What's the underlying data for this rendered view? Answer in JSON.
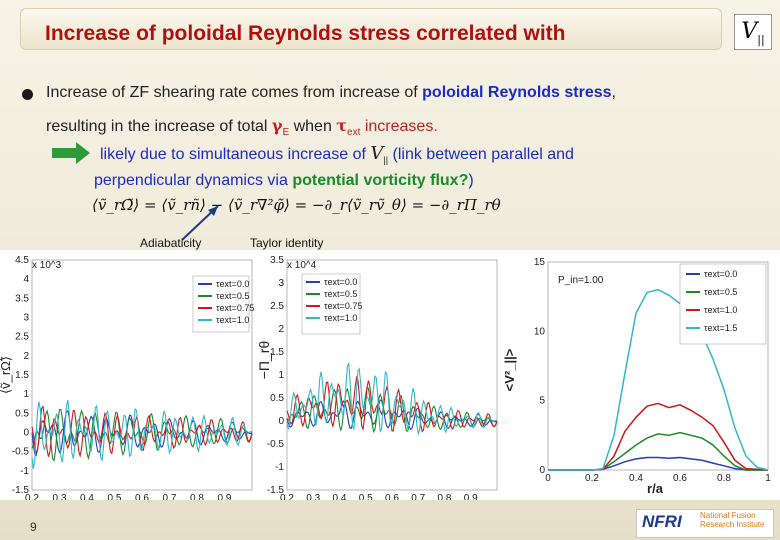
{
  "title": {
    "text": "Increase of poloidal Reynolds stress correlated with",
    "math": "V",
    "math_sub": "||"
  },
  "bullet": {
    "l1a": "Increase of ZF shearing rate comes from increase of ",
    "l1b": "poloidal Reynolds stress",
    "l1c": ",",
    "l2a": "resulting in the increase of total ",
    "l2b": "γ",
    "l2b_sub": "E",
    "l2c": " when ",
    "l2d": "τ",
    "l2d_sub": "ext",
    "l2e": " increases."
  },
  "line3": {
    "a": "likely due to simultaneous increase of ",
    "math": "V",
    "math_sub": "||",
    "b": " (link between parallel and"
  },
  "line4": {
    "a": "perpendicular dynamics via ",
    "b": "potential vorticity flux?",
    "c": ")"
  },
  "equation": "⟨ṽ_rΩ̃⟩ = ⟨ṽ_rñ⟩ − ⟨ṽ_r∇²φ̃⟩ = −∂_r⟨ṽ_rṽ_θ⟩ = −∂_rΠ_rθ",
  "labels": {
    "adiabaticity": "Adiabaticity",
    "taylor": "Taylor identity"
  },
  "page_number": "9",
  "logo": {
    "mark": "NFRI",
    "line1": "National Fusion",
    "line2": "Research Institute"
  },
  "chart_data": [
    {
      "type": "line",
      "ylabel": "⟨ṽ_rΩ̃⟩",
      "multiplier": "x 10^3",
      "xlim": [
        0.2,
        1.0
      ],
      "ylim": [
        -1.5,
        4.5
      ],
      "xticks": [
        "0.2",
        "0.3",
        "0.4",
        "0.5",
        "0.6",
        "0.7",
        "0.8",
        "0.9"
      ],
      "yticks": [
        "-1.5",
        "-1",
        "-0.5",
        "0",
        "0.5",
        "1",
        "1.5",
        "2",
        "2.5",
        "3",
        "3.5",
        "4",
        "4.5"
      ],
      "legend": [
        "τext=0.0",
        "τext=0.5",
        "τext=0.75",
        "τext=1.0"
      ],
      "colors": [
        "#1f3fbf",
        "#1a8a2a",
        "#d01818",
        "#30b8c8"
      ]
    },
    {
      "type": "line",
      "ylabel": "−Π_rθ",
      "multiplier": "x 10^4",
      "xlim": [
        0.2,
        1.0
      ],
      "ylim": [
        -1.5,
        3.5
      ],
      "xticks": [
        "0.2",
        "0.3",
        "0.4",
        "0.5",
        "0.6",
        "0.7",
        "0.8",
        "0.9"
      ],
      "yticks": [
        "-1.5",
        "-1",
        "-0.5",
        "0",
        "0.5",
        "1",
        "1.5",
        "2",
        "2.5",
        "3",
        "3.5"
      ],
      "legend": [
        "τext=0.0",
        "τext=0.5",
        "τext=0.75",
        "τext=1.0"
      ],
      "colors": [
        "#1f3fbf",
        "#1a8a2a",
        "#d01818",
        "#30b8c8"
      ]
    },
    {
      "type": "line",
      "xlabel": "r/a",
      "ylabel": "<V²_||>",
      "annotation": "P_in=1.00",
      "xlim": [
        0,
        1.0
      ],
      "ylim": [
        0,
        15
      ],
      "xticks": [
        "0",
        "0.2",
        "0.4",
        "0.6",
        "0.8",
        "1"
      ],
      "yticks": [
        "0",
        "5",
        "10",
        "15"
      ],
      "legend": [
        "τext=0.0",
        "τext=0.5",
        "τext=1.0",
        "τext=1.5"
      ],
      "colors": [
        "#1f3fbf",
        "#1a8a2a",
        "#d01818",
        "#30b8c8"
      ],
      "series": [
        {
          "name": "τext=0.0",
          "x": [
            0.0,
            0.1,
            0.2,
            0.25,
            0.3,
            0.35,
            0.4,
            0.45,
            0.5,
            0.55,
            0.6,
            0.65,
            0.7,
            0.75,
            0.8,
            0.85,
            0.9,
            1.0
          ],
          "y": [
            0,
            0,
            0,
            0.05,
            0.3,
            0.6,
            0.8,
            0.9,
            0.9,
            0.85,
            0.9,
            0.8,
            0.7,
            0.5,
            0.3,
            0.1,
            0,
            0
          ]
        },
        {
          "name": "τext=0.5",
          "x": [
            0.0,
            0.1,
            0.2,
            0.25,
            0.3,
            0.35,
            0.4,
            0.45,
            0.5,
            0.55,
            0.6,
            0.65,
            0.7,
            0.75,
            0.8,
            0.85,
            0.9,
            1.0
          ],
          "y": [
            0,
            0,
            0,
            0.05,
            0.6,
            1.2,
            1.8,
            2.3,
            2.6,
            2.5,
            2.7,
            2.5,
            2.3,
            1.8,
            1.0,
            0.3,
            0,
            0
          ]
        },
        {
          "name": "τext=1.0",
          "x": [
            0.0,
            0.1,
            0.2,
            0.25,
            0.3,
            0.35,
            0.4,
            0.45,
            0.5,
            0.55,
            0.6,
            0.65,
            0.7,
            0.75,
            0.8,
            0.85,
            0.9,
            1.0
          ],
          "y": [
            0,
            0,
            0,
            0.05,
            1.0,
            2.8,
            3.8,
            4.6,
            4.8,
            4.5,
            4.7,
            4.3,
            3.8,
            3.2,
            2.0,
            0.7,
            0.1,
            0
          ]
        },
        {
          "name": "τext=1.5",
          "x": [
            0.0,
            0.1,
            0.2,
            0.25,
            0.3,
            0.35,
            0.4,
            0.45,
            0.5,
            0.55,
            0.6,
            0.65,
            0.7,
            0.75,
            0.8,
            0.85,
            0.9,
            0.95,
            1.0
          ],
          "y": [
            0,
            0,
            0,
            0.1,
            2.5,
            7.0,
            11.3,
            12.8,
            13.0,
            12.6,
            12.0,
            11.0,
            9.8,
            8.0,
            5.8,
            3.0,
            1.0,
            0.2,
            0
          ]
        }
      ]
    }
  ]
}
